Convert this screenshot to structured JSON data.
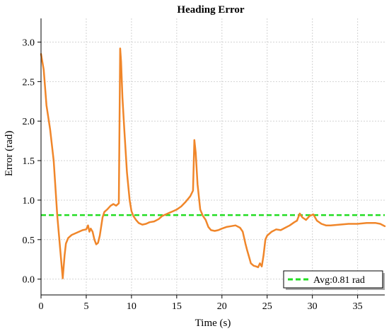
{
  "chart_data": {
    "type": "line",
    "title": "Heading Error",
    "xlabel": "Time (s)",
    "ylabel": "Error (rad)",
    "xlim": [
      0,
      38
    ],
    "ylim": [
      -0.2,
      3.3
    ],
    "xticks": [
      0,
      5,
      10,
      15,
      20,
      25,
      30,
      35
    ],
    "xtick_labels": [
      "0",
      "5",
      "10",
      "15",
      "20",
      "25",
      "30",
      "35"
    ],
    "yticks": [
      0.0,
      0.5,
      1.0,
      1.5,
      2.0,
      2.5,
      3.0
    ],
    "ytick_labels": [
      "0.0",
      "0.5",
      "1.0",
      "1.5",
      "2.0",
      "2.5",
      "3.0"
    ],
    "grid": true,
    "legend_position": "bottom-right",
    "colors": {
      "series": "#f0862a",
      "average": "#22dd22"
    },
    "series": [
      {
        "x": [
          0,
          0.3,
          0.6,
          1.0,
          1.4,
          1.8,
          2.1,
          2.4,
          2.6,
          2.75,
          3.0,
          3.4,
          3.8,
          4.2,
          4.6,
          5.0,
          5.2,
          5.35,
          5.5,
          5.7,
          5.9,
          6.1,
          6.3,
          6.5,
          6.8,
          7.0,
          7.3,
          7.7,
          8.0,
          8.3,
          8.6,
          8.75,
          8.85,
          9.0,
          9.2,
          9.5,
          9.8,
          10.0,
          10.2,
          10.5,
          10.8,
          11.2,
          11.6,
          12.0,
          12.5,
          13.0,
          13.4,
          13.8,
          14.2,
          14.6,
          15.0,
          15.5,
          16.0,
          16.5,
          16.8,
          16.95,
          17.1,
          17.3,
          17.6,
          17.9,
          18.2,
          18.5,
          18.8,
          19.2,
          19.6,
          20.0,
          20.5,
          21.0,
          21.5,
          22.0,
          22.3,
          22.6,
          22.8,
          23.0,
          23.2,
          23.5,
          23.8,
          24.0,
          24.2,
          24.4,
          24.6,
          24.8,
          25.0,
          25.5,
          26.0,
          26.5,
          27.0,
          27.5,
          28.0,
          28.3,
          28.6,
          28.9,
          29.3,
          29.7,
          30.1,
          30.5,
          31.0,
          31.5,
          32.0,
          33.0,
          34.0,
          35.0,
          36.0,
          37.0,
          37.5,
          38.0
        ],
        "y": [
          2.85,
          2.65,
          2.2,
          1.9,
          1.5,
          0.8,
          0.4,
          0.01,
          0.3,
          0.45,
          0.52,
          0.56,
          0.58,
          0.6,
          0.62,
          0.63,
          0.68,
          0.6,
          0.64,
          0.6,
          0.5,
          0.44,
          0.46,
          0.55,
          0.78,
          0.85,
          0.88,
          0.93,
          0.95,
          0.93,
          0.96,
          2.92,
          2.75,
          2.3,
          1.9,
          1.35,
          1.0,
          0.86,
          0.8,
          0.75,
          0.71,
          0.69,
          0.7,
          0.72,
          0.73,
          0.76,
          0.8,
          0.82,
          0.84,
          0.86,
          0.88,
          0.92,
          0.98,
          1.05,
          1.12,
          1.76,
          1.6,
          1.2,
          0.88,
          0.8,
          0.75,
          0.66,
          0.62,
          0.61,
          0.62,
          0.64,
          0.66,
          0.67,
          0.68,
          0.65,
          0.6,
          0.45,
          0.36,
          0.28,
          0.2,
          0.17,
          0.16,
          0.15,
          0.2,
          0.16,
          0.3,
          0.5,
          0.55,
          0.6,
          0.63,
          0.62,
          0.65,
          0.68,
          0.72,
          0.74,
          0.83,
          0.78,
          0.75,
          0.8,
          0.82,
          0.74,
          0.7,
          0.68,
          0.68,
          0.69,
          0.7,
          0.7,
          0.71,
          0.71,
          0.7,
          0.67
        ]
      }
    ],
    "reference_lines": [
      {
        "name": "Avg:0.81 rad",
        "y": 0.81,
        "style": "dashed"
      }
    ]
  }
}
